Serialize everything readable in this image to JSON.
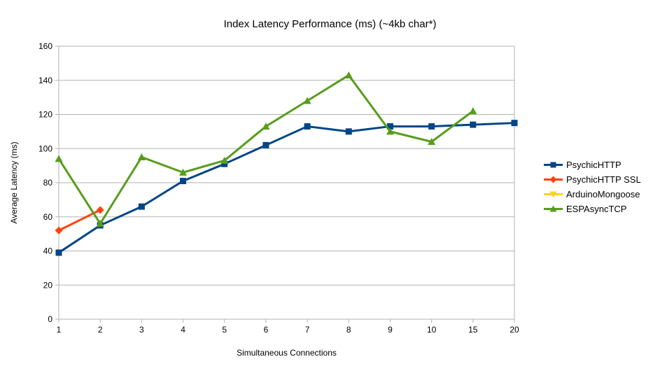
{
  "chart_data": {
    "type": "line",
    "title": "Index Latency Performance (ms) (~4kb char*)",
    "xlabel": "Simultaneous Connections",
    "ylabel": "Average Latency (ms)",
    "categories": [
      "1",
      "2",
      "3",
      "4",
      "5",
      "6",
      "7",
      "8",
      "9",
      "10",
      "15",
      "20"
    ],
    "ylim": [
      0,
      160
    ],
    "yticks": [
      0,
      20,
      40,
      60,
      80,
      100,
      120,
      140,
      160
    ],
    "grid": "horizontal",
    "grid_color": "#b3b3b3",
    "text_color": "#000000",
    "legend_position": "right",
    "series": [
      {
        "name": "PsychicHTTP",
        "color": "#004586",
        "marker": "square",
        "values": [
          39,
          55,
          66,
          81,
          91,
          102,
          113,
          110,
          113,
          113,
          114,
          115
        ]
      },
      {
        "name": "PsychicHTTP SSL",
        "color": "#FF420E",
        "marker": "diamond",
        "values": [
          52,
          64,
          null,
          null,
          null,
          null,
          null,
          null,
          null,
          null,
          null,
          null
        ]
      },
      {
        "name": "ArduinoMongoose",
        "color": "#FFD320",
        "marker": "triangle-down",
        "values": [
          null,
          null,
          null,
          null,
          null,
          null,
          null,
          null,
          null,
          null,
          null,
          null
        ]
      },
      {
        "name": "ESPAsyncTCP",
        "color": "#579D1C",
        "marker": "triangle-up",
        "values": [
          94,
          56,
          95,
          86,
          93,
          113,
          128,
          143,
          110,
          104,
          122,
          null
        ]
      }
    ]
  }
}
